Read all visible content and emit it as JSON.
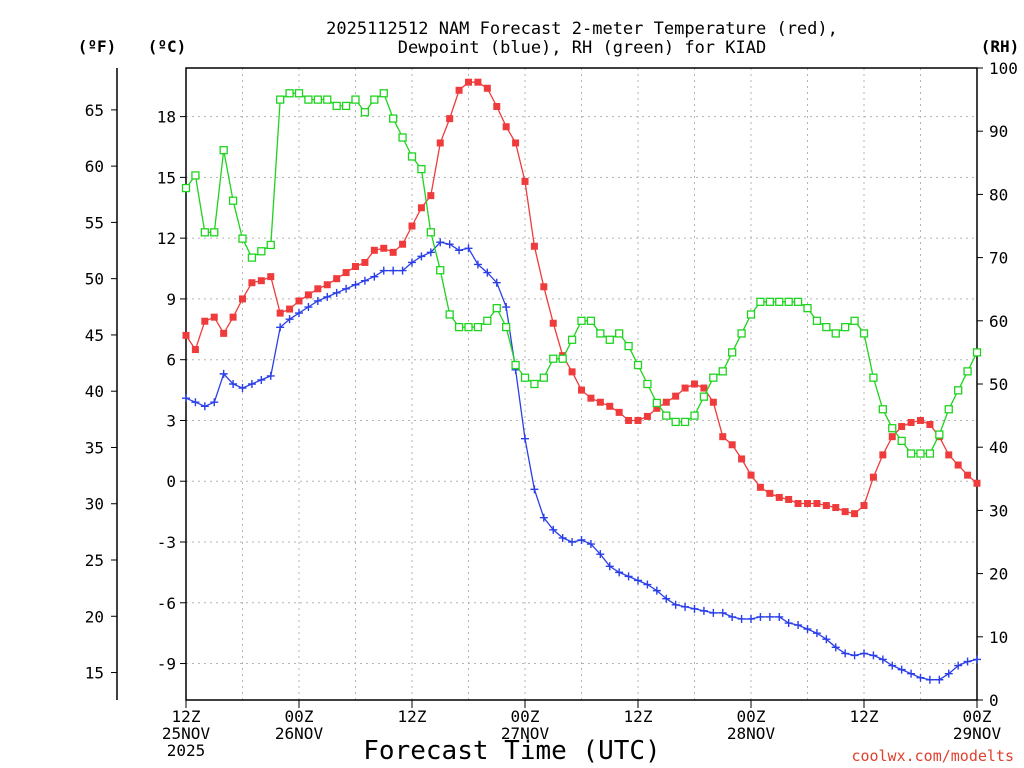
{
  "chart_data": {
    "type": "line",
    "title_lines": [
      "2025112512 NAM Forecast 2-meter Temperature (red),",
      "Dewpoint (blue), RH (green) for KIAD"
    ],
    "xlabel": "Forecast Time (UTC)",
    "credit": "coolwx.com/modelts",
    "units": {
      "fahrenheit": "(ºF)",
      "celsius": "(ºC)",
      "rh": "(RH)"
    },
    "xlim_hours": [
      0,
      84
    ],
    "x_ticks": [
      {
        "hour": 0,
        "lines": [
          "12Z",
          "25NOV",
          "2025"
        ]
      },
      {
        "hour": 12,
        "lines": [
          "00Z",
          "26NOV"
        ]
      },
      {
        "hour": 24,
        "lines": [
          "12Z"
        ]
      },
      {
        "hour": 36,
        "lines": [
          "00Z",
          "27NOV"
        ]
      },
      {
        "hour": 48,
        "lines": [
          "12Z"
        ]
      },
      {
        "hour": 60,
        "lines": [
          "00Z",
          "28NOV"
        ]
      },
      {
        "hour": 72,
        "lines": [
          "12Z"
        ]
      },
      {
        "hour": 84,
        "lines": [
          "00Z",
          "29NOV"
        ]
      }
    ],
    "celsius_axis": {
      "ylim": [
        -10.8,
        20.4
      ],
      "ticks": [
        18,
        15,
        12,
        9,
        6,
        3,
        0,
        -3,
        -6,
        -9
      ]
    },
    "fahrenheit_axis": {
      "ticks": [
        65,
        60,
        55,
        50,
        45,
        40,
        35,
        30,
        25,
        20,
        15
      ]
    },
    "rh_axis": {
      "ylim": [
        0,
        100
      ],
      "ticks": [
        100,
        90,
        80,
        70,
        60,
        50,
        40,
        30,
        20,
        10,
        0
      ]
    },
    "series": [
      {
        "name": "Temperature",
        "unit": "C",
        "color": "#ef3b3b",
        "marker": "filled-square",
        "x": [
          0,
          1,
          2,
          3,
          4,
          5,
          6,
          7,
          8,
          9,
          10,
          11,
          12,
          13,
          14,
          15,
          16,
          17,
          18,
          19,
          20,
          21,
          22,
          23,
          24,
          25,
          26,
          27,
          28,
          29,
          30,
          31,
          32,
          33,
          34,
          35,
          36,
          37,
          38,
          39,
          40,
          41,
          42,
          43,
          44,
          45,
          46,
          47,
          48,
          49,
          50,
          51,
          52,
          53,
          54,
          55,
          56,
          57,
          58,
          59,
          60,
          61,
          62,
          63,
          64,
          65,
          66,
          67,
          68,
          69,
          70,
          71,
          72,
          73,
          74,
          75,
          76,
          77,
          78,
          79,
          80,
          81,
          82,
          83,
          84
        ],
        "values": [
          7.2,
          6.5,
          7.9,
          8.1,
          7.3,
          8.1,
          9.0,
          9.8,
          9.9,
          10.1,
          8.3,
          8.5,
          8.9,
          9.2,
          9.5,
          9.7,
          10.0,
          10.3,
          10.6,
          10.8,
          11.4,
          11.5,
          11.3,
          11.7,
          12.6,
          13.5,
          14.1,
          16.7,
          17.9,
          19.3,
          19.7,
          19.7,
          19.4,
          18.5,
          17.5,
          16.7,
          14.8,
          11.6,
          9.6,
          7.8,
          6.2,
          5.4,
          4.5,
          4.1,
          3.9,
          3.7,
          3.4,
          3.0,
          3.0,
          3.2,
          3.6,
          3.9,
          4.2,
          4.6,
          4.8,
          4.6,
          3.9,
          2.2,
          1.8,
          1.1,
          0.3,
          -0.3,
          -0.6,
          -0.8,
          -0.9,
          -1.1,
          -1.1,
          -1.1,
          -1.2,
          -1.3,
          -1.5,
          -1.6,
          -1.2,
          0.2,
          1.3,
          2.2,
          2.7,
          2.9,
          3.0,
          2.8,
          2.2,
          1.3,
          0.8,
          0.3,
          -0.1
        ]
      },
      {
        "name": "Dewpoint",
        "unit": "C",
        "color": "#2a3fe8",
        "marker": "plus",
        "x": [
          0,
          1,
          2,
          3,
          4,
          5,
          6,
          7,
          8,
          9,
          10,
          11,
          12,
          13,
          14,
          15,
          16,
          17,
          18,
          19,
          20,
          21,
          22,
          23,
          24,
          25,
          26,
          27,
          28,
          29,
          30,
          31,
          32,
          33,
          34,
          35,
          36,
          37,
          38,
          39,
          40,
          41,
          42,
          43,
          44,
          45,
          46,
          47,
          48,
          49,
          50,
          51,
          52,
          53,
          54,
          55,
          56,
          57,
          58,
          59,
          60,
          61,
          62,
          63,
          64,
          65,
          66,
          67,
          68,
          69,
          70,
          71,
          72,
          73,
          74,
          75,
          76,
          77,
          78,
          79,
          80,
          81,
          82,
          83,
          84
        ],
        "values": [
          4.1,
          3.9,
          3.7,
          3.9,
          5.3,
          4.8,
          4.6,
          4.8,
          5.0,
          5.2,
          7.6,
          8.0,
          8.3,
          8.6,
          8.9,
          9.1,
          9.3,
          9.5,
          9.7,
          9.9,
          10.1,
          10.4,
          10.4,
          10.4,
          10.8,
          11.1,
          11.3,
          11.8,
          11.7,
          11.4,
          11.5,
          10.7,
          10.3,
          9.8,
          8.6,
          5.5,
          2.1,
          -0.4,
          -1.8,
          -2.4,
          -2.8,
          -3.0,
          -2.9,
          -3.1,
          -3.6,
          -4.2,
          -4.5,
          -4.7,
          -4.9,
          -5.1,
          -5.4,
          -5.8,
          -6.1,
          -6.2,
          -6.3,
          -6.4,
          -6.5,
          -6.5,
          -6.7,
          -6.8,
          -6.8,
          -6.7,
          -6.7,
          -6.7,
          -7.0,
          -7.1,
          -7.3,
          -7.5,
          -7.8,
          -8.2,
          -8.5,
          -8.6,
          -8.5,
          -8.6,
          -8.8,
          -9.1,
          -9.3,
          -9.5,
          -9.7,
          -9.8,
          -9.8,
          -9.5,
          -9.1,
          -8.9,
          -8.8
        ]
      },
      {
        "name": "Relative Humidity",
        "unit": "%",
        "color": "#1ed41e",
        "marker": "open-square",
        "x": [
          0,
          1,
          2,
          3,
          4,
          5,
          6,
          7,
          8,
          9,
          10,
          11,
          12,
          13,
          14,
          15,
          16,
          17,
          18,
          19,
          20,
          21,
          22,
          23,
          24,
          25,
          26,
          27,
          28,
          29,
          30,
          31,
          32,
          33,
          34,
          35,
          36,
          37,
          38,
          39,
          40,
          41,
          42,
          43,
          44,
          45,
          46,
          47,
          48,
          49,
          50,
          51,
          52,
          53,
          54,
          55,
          56,
          57,
          58,
          59,
          60,
          61,
          62,
          63,
          64,
          65,
          66,
          67,
          68,
          69,
          70,
          71,
          72,
          73,
          74,
          75,
          76,
          77,
          78,
          79,
          80,
          81,
          82,
          83,
          84
        ],
        "values": [
          81,
          83,
          74,
          74,
          87,
          79,
          73,
          70,
          71,
          72,
          95,
          96,
          96,
          95,
          95,
          95,
          94,
          94,
          95,
          93,
          95,
          96,
          92,
          89,
          86,
          84,
          74,
          68,
          61,
          59,
          59,
          59,
          60,
          62,
          59,
          53,
          51,
          50,
          51,
          54,
          54,
          57,
          60,
          60,
          58,
          57,
          58,
          56,
          53,
          50,
          47,
          45,
          44,
          44,
          45,
          48,
          51,
          52,
          55,
          58,
          61,
          63,
          63,
          63,
          63,
          63,
          62,
          60,
          59,
          58,
          59,
          60,
          58,
          51,
          46,
          43,
          41,
          39,
          39,
          39,
          42,
          46,
          49,
          52,
          55
        ]
      }
    ]
  }
}
